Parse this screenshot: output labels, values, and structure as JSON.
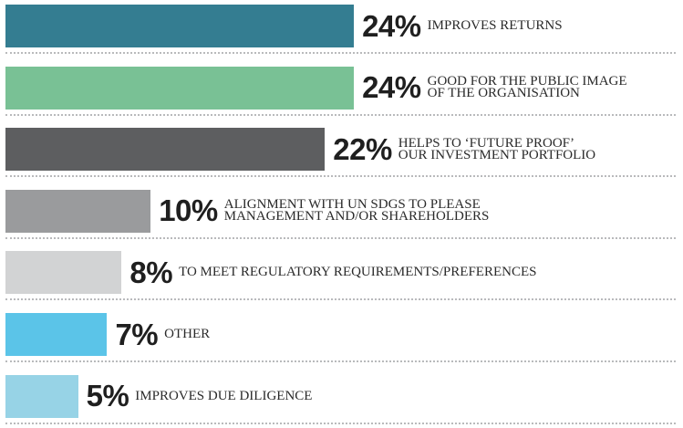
{
  "chart_data": {
    "type": "bar",
    "orientation": "horizontal",
    "categories": [
      "IMPROVES RETURNS",
      "GOOD FOR THE PUBLIC IMAGE\nOF THE ORGANISATION",
      "HELPS TO ‘FUTURE PROOF’\nOUR INVESTMENT PORTFOLIO",
      "ALIGNMENT WITH UN SDGS TO PLEASE\nMANAGEMENT AND/OR SHAREHOLDERS",
      "TO MEET REGULATORY REQUIREMENTS/PREFERENCES",
      "OTHER",
      "IMPROVES DUE DILIGENCE"
    ],
    "values": [
      24,
      24,
      22,
      10,
      8,
      7,
      5
    ],
    "value_labels": [
      "24%",
      "24%",
      "22%",
      "10%",
      "8%",
      "7%",
      "5%"
    ],
    "colors": [
      "#347d91",
      "#79c195",
      "#5d5e60",
      "#9a9b9d",
      "#d2d3d4",
      "#5bc4e8",
      "#97d3e6"
    ]
  }
}
